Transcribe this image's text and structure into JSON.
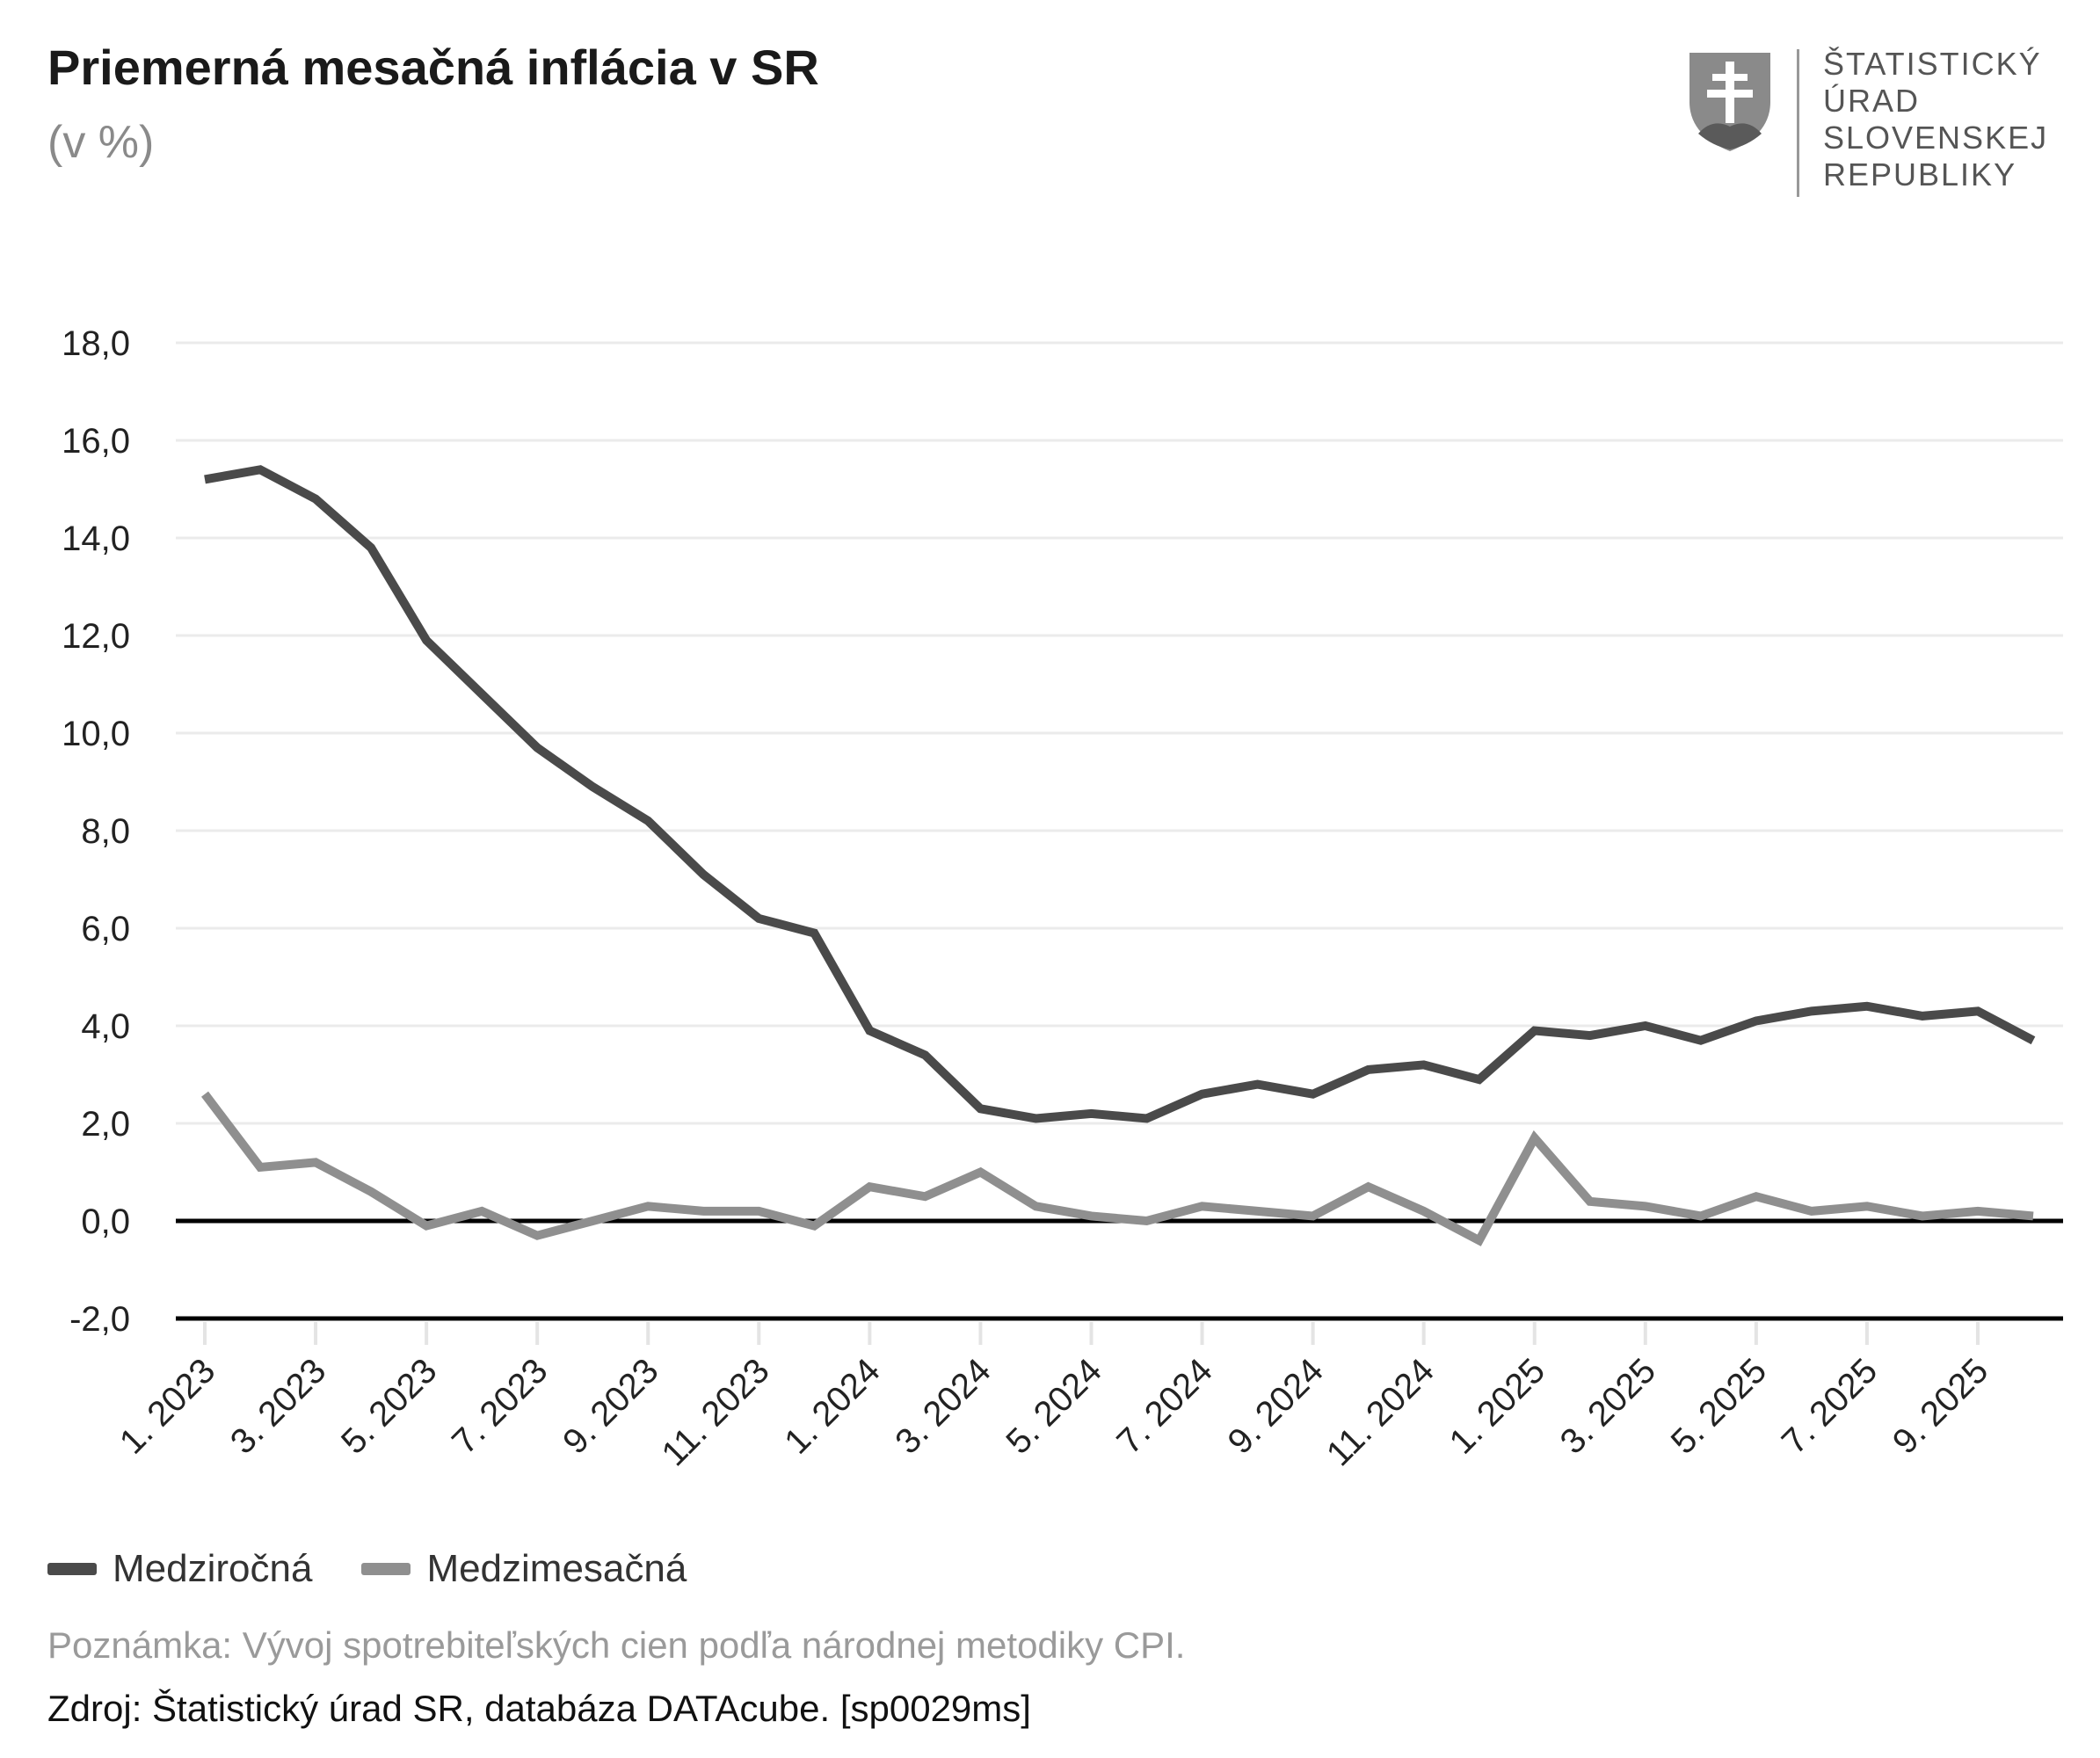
{
  "header": {
    "title": "Priemerná mesačná inflácia v SR",
    "subtitle": "(v %)"
  },
  "logo": {
    "lines": [
      "ŠTATISTICKÝ",
      "ÚRAD",
      "SLOVENSKEJ",
      "REPUBLIKY"
    ]
  },
  "footer": {
    "note": "Poznámka: Vývoj spotrebiteľských cien podľa národnej metodiky CPI.",
    "source": "Zdroj: Štatistický úrad SR, databáza DATAcube. [sp0029ms]"
  },
  "chart_data": {
    "type": "line",
    "title": "Priemerná mesačná inflácia v SR",
    "subtitle": "(v %)",
    "xlabel": "",
    "ylabel": "",
    "ylim": [
      -2,
      18
    ],
    "yticks": [
      "18,0",
      "16,0",
      "14,0",
      "12,0",
      "10,0",
      "8,0",
      "6,0",
      "4,0",
      "2,0",
      "0,0",
      "-2,0"
    ],
    "ytick_values": [
      18,
      16,
      14,
      12,
      10,
      8,
      6,
      4,
      2,
      0,
      -2
    ],
    "grid": true,
    "legend_position": "bottom-left",
    "x": [
      "1. 2023",
      "2. 2023",
      "3. 2023",
      "4. 2023",
      "5. 2023",
      "6. 2023",
      "7. 2023",
      "8. 2023",
      "9. 2023",
      "10. 2023",
      "11. 2023",
      "12. 2023",
      "1. 2024",
      "2. 2024",
      "3. 2024",
      "4. 2024",
      "5. 2024",
      "6. 2024",
      "7. 2024",
      "8. 2024",
      "9. 2024",
      "10. 2024",
      "11. 2024",
      "12. 2024",
      "1. 2025",
      "2. 2025",
      "3. 2025",
      "4. 2025",
      "5. 2025",
      "6. 2025",
      "7. 2025",
      "8. 2025",
      "9. 2025",
      "10. 2025"
    ],
    "xtick_labels": [
      "1. 2023",
      "3. 2023",
      "5. 2023",
      "7. 2023",
      "9. 2023",
      "11. 2023",
      "1. 2024",
      "3. 2024",
      "5. 2024",
      "7. 2024",
      "9. 2024",
      "11. 2024",
      "1. 2025",
      "3. 2025",
      "5. 2025",
      "7. 2025",
      "9. 2025"
    ],
    "series": [
      {
        "name": "Medziročná",
        "color": "#4a4a4a",
        "values": [
          15.2,
          15.4,
          14.8,
          13.8,
          11.9,
          10.8,
          9.7,
          8.9,
          8.2,
          7.1,
          6.2,
          5.9,
          3.9,
          3.4,
          2.3,
          2.1,
          2.2,
          2.1,
          2.6,
          2.8,
          2.6,
          3.1,
          3.2,
          2.9,
          3.9,
          3.8,
          4.0,
          3.7,
          4.1,
          4.3,
          4.4,
          4.2,
          4.3,
          3.7
        ]
      },
      {
        "name": "Medzimesačná",
        "color": "#8f8f8f",
        "values": [
          2.6,
          1.1,
          1.2,
          0.6,
          -0.1,
          0.2,
          -0.3,
          0.0,
          0.3,
          0.2,
          0.2,
          -0.1,
          0.7,
          0.5,
          1.0,
          0.3,
          0.1,
          0.0,
          0.3,
          0.2,
          0.1,
          0.7,
          0.2,
          -0.4,
          1.7,
          0.4,
          0.3,
          0.1,
          0.5,
          0.2,
          0.3,
          0.1,
          0.2,
          0.1
        ]
      }
    ]
  }
}
